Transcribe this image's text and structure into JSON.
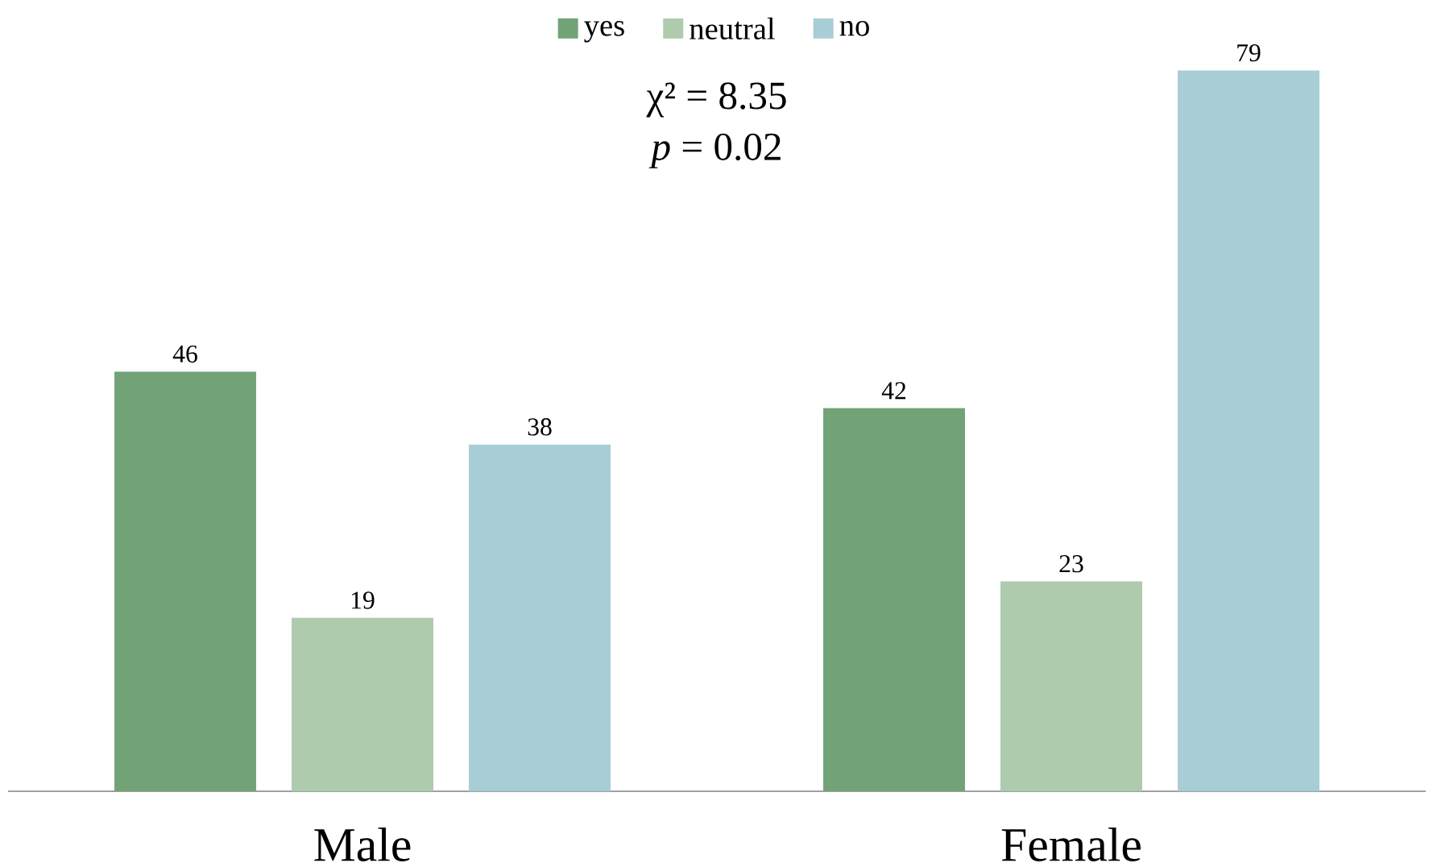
{
  "chart_data": {
    "type": "bar",
    "categories": [
      "Male",
      "Female"
    ],
    "series": [
      {
        "name": "yes",
        "color": "#72a377",
        "values": [
          46,
          42
        ]
      },
      {
        "name": "neutral",
        "color": "#aecbad",
        "values": [
          19,
          23
        ]
      },
      {
        "name": "no",
        "color": "#a8cdd6",
        "values": [
          38,
          79
        ]
      }
    ],
    "data_labels": true,
    "legend": "top",
    "annotations": [
      "χ² = 8.35",
      "*p* = 0.02"
    ]
  }
}
